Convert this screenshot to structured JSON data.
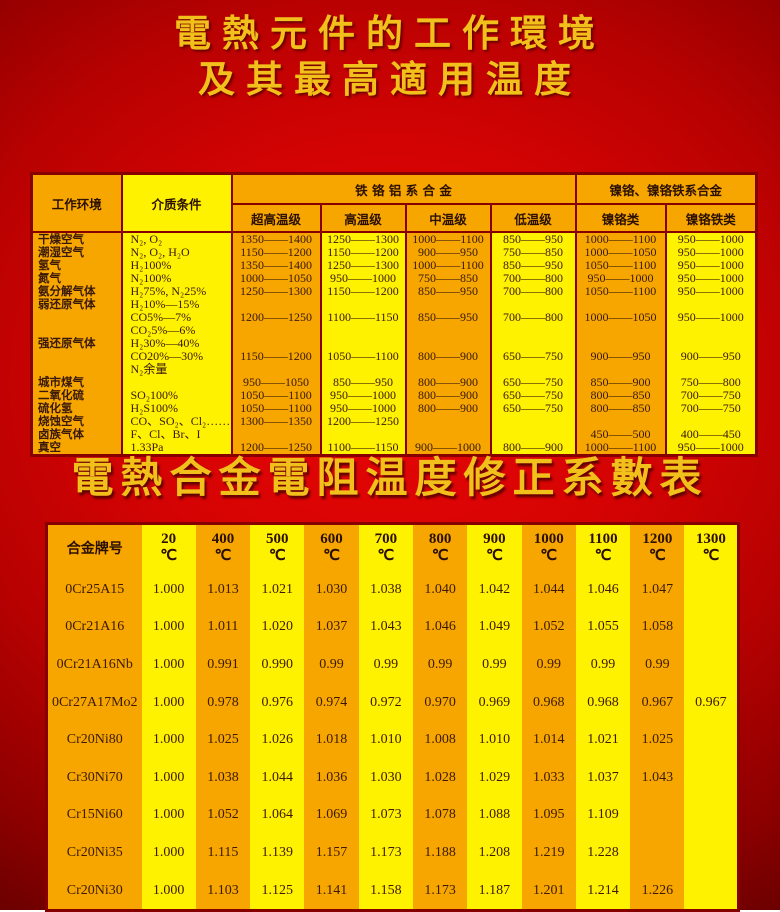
{
  "page": {
    "title_line1": "電熱元件的工作環境",
    "title_line2": "及其最高適用温度",
    "section2_title": "電熱合金電阻温度修正系數表"
  },
  "colors": {
    "background_red": "#d40303",
    "cell_orange": "#f7a600",
    "cell_yellow": "#fff200",
    "table_border_maroon": "#870000",
    "title_gold": "#f2c01a",
    "cell_text_dark": "#38180a"
  },
  "env_table": {
    "header": {
      "col_environment": "工作环境",
      "col_medium": "介质条件",
      "group_fecral": "铁 铬 铝 系 合 金",
      "group_nicr": "镍铬、镍铬铁系合金",
      "sub_columns": [
        "超高温级",
        "高温级",
        "中温级",
        "低温级",
        "镍铬类",
        "镍铬铁类"
      ]
    },
    "rows": [
      [
        "干燥空气",
        "N₂, O₂",
        "1350——1400",
        "1250——1300",
        "1000——1100",
        "850——950",
        "1000——1100",
        "950——1000"
      ],
      [
        "潮湿空气",
        "N₂, O₂, H₂O",
        "1150——1200",
        "1150——1200",
        "900——950",
        "750——850",
        "1000——1050",
        "950——1000"
      ],
      [
        "氢气",
        "H₂100%",
        "1350——1400",
        "1250——1300",
        "1000——1100",
        "850——950",
        "1050——1100",
        "950——1000"
      ],
      [
        "氮气",
        "N₂100%",
        "1000——1050",
        "950——1000",
        "750——850",
        "700——800",
        "950——1000",
        "950——1000"
      ],
      [
        "氨分解气体",
        "H₂75%, N₂25%",
        "1250——1300",
        "1150——1200",
        "850——950",
        "700——800",
        "1050——1100",
        "950——1000"
      ],
      [
        "弱还原气体",
        "H₂10%—15%",
        "",
        "",
        "",
        "",
        "",
        ""
      ],
      [
        "",
        "CO5%—7%",
        "1200——1250",
        "1100——1150",
        "850——950",
        "700——800",
        "1000——1050",
        "950——1000"
      ],
      [
        "",
        "CO₂5%—6%",
        "",
        "",
        "",
        "",
        "",
        ""
      ],
      [
        "强还原气体",
        "H₂30%—40%",
        "",
        "",
        "",
        "",
        "",
        ""
      ],
      [
        "",
        "CO20%—30%",
        "1150——1200",
        "1050——1100",
        "800——900",
        "650——750",
        "900——950",
        "900——950"
      ],
      [
        "",
        "N₂余量",
        "",
        "",
        "",
        "",
        "",
        ""
      ],
      [
        "城市煤气",
        "",
        "950——1050",
        "850——950",
        "800——900",
        "650——750",
        "850——900",
        "750——800"
      ],
      [
        "二氧化硫",
        "SO₂100%",
        "1050——1100",
        "950——1000",
        "800——900",
        "650——750",
        "800——850",
        "700——750"
      ],
      [
        "硫化氢",
        "H₂S100%",
        "1050——1100",
        "950——1000",
        "800——900",
        "650——750",
        "800——850",
        "700——750"
      ],
      [
        "烧蚀空气",
        "CO、SO₂、Cl₂……",
        "1300——1350",
        "1200——1250",
        "",
        "",
        "",
        ""
      ],
      [
        "卤族气体",
        "F、Cl、Br、I",
        "",
        "",
        "",
        "",
        "450——500",
        "400——450"
      ],
      [
        "真空",
        "1.33Pa",
        "1200——1250",
        "1100——1150",
        "900——1000",
        "800——900",
        "1000——1100",
        "950——1000"
      ]
    ]
  },
  "coeff_table": {
    "header_first": "合金牌号",
    "temps": [
      "20",
      "400",
      "500",
      "600",
      "700",
      "800",
      "900",
      "1000",
      "1100",
      "1200",
      "1300"
    ],
    "degree": "℃",
    "rows": [
      {
        "alloy": "0Cr25A15",
        "values": [
          "1.000",
          "1.013",
          "1.021",
          "1.030",
          "1.038",
          "1.040",
          "1.042",
          "1.044",
          "1.046",
          "1.047",
          ""
        ]
      },
      {
        "alloy": "0Cr21A16",
        "values": [
          "1.000",
          "1.011",
          "1.020",
          "1.037",
          "1.043",
          "1.046",
          "1.049",
          "1.052",
          "1.055",
          "1.058",
          ""
        ]
      },
      {
        "alloy": "0Cr21A16Nb",
        "values": [
          "1.000",
          "0.991",
          "0.990",
          "0.99",
          "0.99",
          "0.99",
          "0.99",
          "0.99",
          "0.99",
          "0.99",
          ""
        ]
      },
      {
        "alloy": "0Cr27A17Mo2",
        "values": [
          "1.000",
          "0.978",
          "0.976",
          "0.974",
          "0.972",
          "0.970",
          "0.969",
          "0.968",
          "0.968",
          "0.967",
          "0.967"
        ]
      },
      {
        "alloy": "Cr20Ni80",
        "values": [
          "1.000",
          "1.025",
          "1.026",
          "1.018",
          "1.010",
          "1.008",
          "1.010",
          "1.014",
          "1.021",
          "1.025",
          ""
        ]
      },
      {
        "alloy": "Cr30Ni70",
        "values": [
          "1.000",
          "1.038",
          "1.044",
          "1.036",
          "1.030",
          "1.028",
          "1.029",
          "1.033",
          "1.037",
          "1.043",
          ""
        ]
      },
      {
        "alloy": "Cr15Ni60",
        "values": [
          "1.000",
          "1.052",
          "1.064",
          "1.069",
          "1.073",
          "1.078",
          "1.088",
          "1.095",
          "1.109",
          "",
          ""
        ]
      },
      {
        "alloy": "Cr20Ni35",
        "values": [
          "1.000",
          "1.115",
          "1.139",
          "1.157",
          "1.173",
          "1.188",
          "1.208",
          "1.219",
          "1.228",
          "",
          ""
        ]
      },
      {
        "alloy": "Cr20Ni30",
        "values": [
          "1.000",
          "1.103",
          "1.125",
          "1.141",
          "1.158",
          "1.173",
          "1.187",
          "1.201",
          "1.214",
          "1.226",
          ""
        ]
      }
    ]
  }
}
